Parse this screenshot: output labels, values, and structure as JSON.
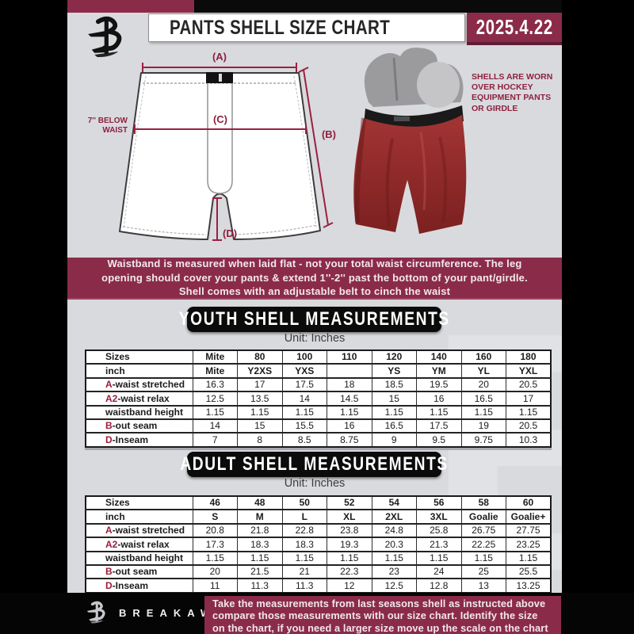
{
  "colors": {
    "page_bg": "#000000",
    "doc_bg": "#d9dadd",
    "maroon": "#8b2b4a",
    "accent_red": "#9b1c3c",
    "banner_black": "#0b0b0b",
    "shell_red": "#9c2b2b"
  },
  "header": {
    "title": "PANTS SHELL SIZE CHART",
    "date": "2025.4.22",
    "logo": "breakaway-b-logo"
  },
  "diagram": {
    "labels": {
      "a": "(A)",
      "b": "(B)",
      "c": "(C)",
      "d": "(D)"
    },
    "below_waist_note": [
      "7'' BELOW",
      "WAIST"
    ],
    "shell_note_lines": [
      "SHELLS ARE WORN",
      "OVER HOCKEY",
      "EQUIPMENT PANTS",
      "OR GIRDLE"
    ]
  },
  "info_banner": {
    "lines": [
      "Waistband is measured when laid flat - not your total waist circumference. The leg",
      "opening should cover your pants & extend 1''-2'' past the bottom of your pant/girdle.",
      "Shell comes with an adjustable belt to cinch the waist"
    ]
  },
  "youth": {
    "banner": "YOUTH SHELL MEASUREMENTS",
    "unit": "Unit: Inches",
    "table": {
      "header_label": "Sizes",
      "header_values": [
        "Mite",
        "80",
        "100",
        "110",
        "120",
        "140",
        "160",
        "180"
      ],
      "subheader_label": "inch",
      "subheader_values": [
        "Mite",
        "Y2XS",
        "YXS",
        "",
        "YS",
        "YM",
        "YL",
        "YXL"
      ],
      "rows": [
        {
          "prefix": "A",
          "label": "-waist stretched",
          "values": [
            "16.3",
            "17",
            "17.5",
            "18",
            "18.5",
            "19.5",
            "20",
            "20.5"
          ]
        },
        {
          "prefix": "A2",
          "label": "-waist relax",
          "values": [
            "12.5",
            "13.5",
            "14",
            "14.5",
            "15",
            "16",
            "16.5",
            "17"
          ]
        },
        {
          "prefix": "",
          "label": "waistband height",
          "values": [
            "1.15",
            "1.15",
            "1.15",
            "1.15",
            "1.15",
            "1.15",
            "1.15",
            "1.15"
          ]
        },
        {
          "prefix": "B",
          "label": "-out seam",
          "values": [
            "14",
            "15",
            "15.5",
            "16",
            "16.5",
            "17.5",
            "19",
            "20.5"
          ]
        },
        {
          "prefix": "D",
          "label": "-Inseam",
          "values": [
            "7",
            "8",
            "8.5",
            "8.75",
            "9",
            "9.5",
            "9.75",
            "10.3"
          ]
        }
      ]
    }
  },
  "adult": {
    "banner": "ADULT SHELL MEASUREMENTS",
    "unit": "Unit: Inches",
    "table": {
      "header_label": "Sizes",
      "header_values": [
        "46",
        "48",
        "50",
        "52",
        "54",
        "56",
        "58",
        "60"
      ],
      "subheader_label": "inch",
      "subheader_values": [
        "S",
        "M",
        "L",
        "XL",
        "2XL",
        "3XL",
        "Goalie",
        "Goalie+"
      ],
      "rows": [
        {
          "prefix": "A",
          "label": "-waist stretched",
          "values": [
            "20.8",
            "21.8",
            "22.8",
            "23.8",
            "24.8",
            "25.8",
            "26.75",
            "27.75"
          ]
        },
        {
          "prefix": "A2",
          "label": "-waist relax",
          "values": [
            "17.3",
            "18.3",
            "18.3",
            "19.3",
            "20.3",
            "21.3",
            "22.25",
            "23.25"
          ]
        },
        {
          "prefix": "",
          "label": "waistband height",
          "values": [
            "1.15",
            "1.15",
            "1.15",
            "1.15",
            "1.15",
            "1.15",
            "1.15",
            "1.15"
          ]
        },
        {
          "prefix": "B",
          "label": "-out seam",
          "values": [
            "20",
            "21.5",
            "21",
            "22.3",
            "23",
            "24",
            "25",
            "25.5"
          ]
        },
        {
          "prefix": "D",
          "label": "-Inseam",
          "values": [
            "11",
            "11.3",
            "11.3",
            "12",
            "12.5",
            "12.8",
            "13",
            "13.25"
          ]
        }
      ]
    }
  },
  "watermark": "B",
  "footer": {
    "brand": "BREAKAWAY",
    "lines": [
      "Take the measurements from last seasons shell as instructed above",
      "compare those measurements  with our size chart. Identify the size",
      "on the chart, if you need a larger size move up the scale on the chart"
    ]
  }
}
